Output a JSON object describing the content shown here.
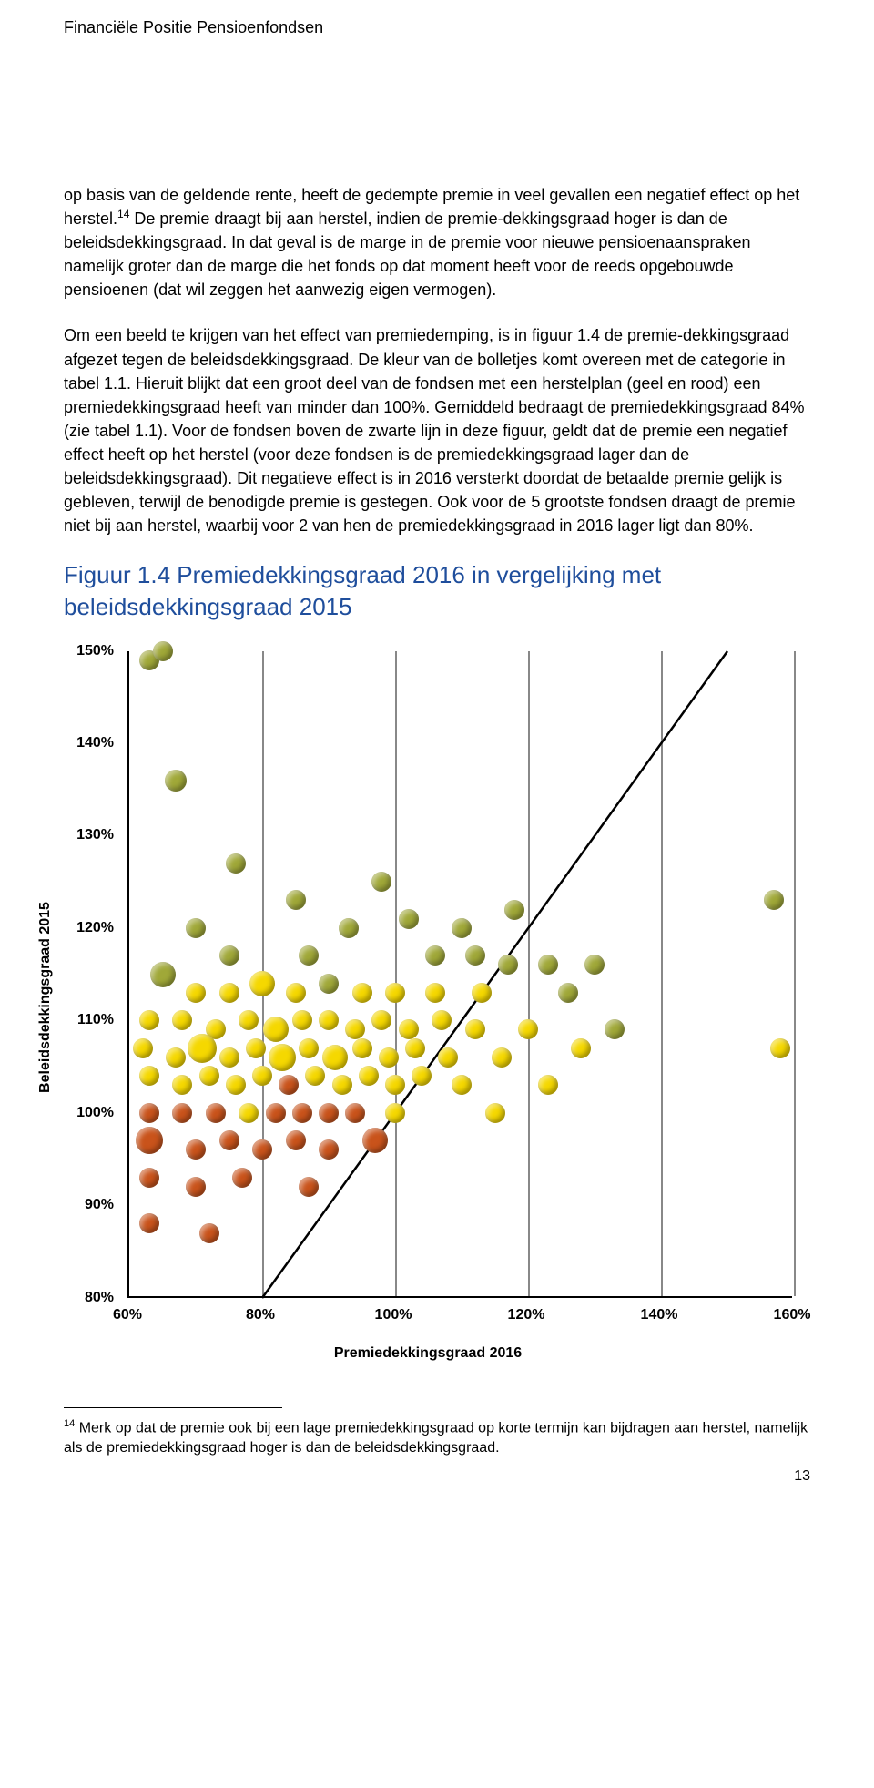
{
  "header": {
    "title": "Financiële Positie Pensioenfondsen"
  },
  "para1": "op basis van de geldende rente, heeft de gedempte premie in veel gevallen een negatief effect op het herstel.",
  "sup1": "14",
  "para1b": " De premie draagt bij aan herstel, indien de premie-dekkingsgraad hoger is dan de beleidsdekkingsgraad. In dat geval is de marge in de premie voor nieuwe pensioenaanspraken namelijk groter dan de marge die het fonds op dat moment heeft voor de reeds opgebouwde pensioenen (dat wil zeggen het aanwezig eigen vermogen).",
  "para2": "Om een beeld te krijgen van het effect van premiedemping, is in figuur 1.4 de premie-dekkingsgraad afgezet tegen de beleidsdekkingsgraad. De kleur van de bolletjes komt overeen met de categorie in tabel 1.1. Hieruit blijkt dat een groot deel van de fondsen met een herstelplan (geel en rood) een premiedekkingsgraad heeft van minder dan 100%. Gemiddeld bedraagt de premiedekkingsgraad 84% (zie tabel 1.1). Voor de fondsen boven de zwarte lijn in deze figuur, geldt dat de premie een negatief effect heeft op het herstel (voor deze fondsen is de premiedekkingsgraad lager dan de beleidsdekkingsgraad). Dit negatieve effect is in 2016 versterkt doordat de betaalde premie gelijk is gebleven, terwijl de benodigde premie is gestegen. Ook voor de 5 grootste fondsen draagt de premie niet bij aan herstel, waarbij voor 2 van hen de premiedekkingsgraad in 2016 lager ligt dan 80%.",
  "figure_title": "Figuur 1.4 Premiedekkingsgraad 2016 in vergelijking met beleidsdekkingsgraad 2015",
  "chart": {
    "type": "scatter",
    "xlabel": "Premiedekkingsgraad 2016",
    "ylabel": "Beleidsdekkingsgraad 2015",
    "xlim": [
      60,
      160
    ],
    "ylim": [
      80,
      150
    ],
    "xticks": [
      60,
      80,
      100,
      120,
      140,
      160
    ],
    "yticks": [
      80,
      90,
      100,
      110,
      120,
      130,
      140,
      150
    ],
    "xtick_labels": [
      "60%",
      "80%",
      "100%",
      "120%",
      "140%",
      "160%"
    ],
    "ytick_labels": [
      "80%",
      "90%",
      "100%",
      "110%",
      "120%",
      "130%",
      "140%",
      "150%"
    ],
    "grid_color": "#888888",
    "axis_color": "#000000",
    "background_color": "#ffffff",
    "label_fontsize": 16,
    "label_fontweight": "bold",
    "diagonal_line": {
      "x1": 80,
      "y1": 80,
      "x2": 150,
      "y2": 150,
      "color": "#000000",
      "width": 2.5
    },
    "colors": {
      "green": "#a0a838",
      "yellow": "#f5d800",
      "red": "#c9531b"
    },
    "marker_radius_default": 11,
    "points": [
      {
        "x": 63,
        "y": 149,
        "c": "green",
        "r": 11
      },
      {
        "x": 65,
        "y": 150,
        "c": "green",
        "r": 11
      },
      {
        "x": 67,
        "y": 136,
        "c": "green",
        "r": 12
      },
      {
        "x": 76,
        "y": 127,
        "c": "green",
        "r": 11
      },
      {
        "x": 98,
        "y": 125,
        "c": "green",
        "r": 11
      },
      {
        "x": 85,
        "y": 123,
        "c": "green",
        "r": 11
      },
      {
        "x": 70,
        "y": 120,
        "c": "green",
        "r": 11
      },
      {
        "x": 93,
        "y": 120,
        "c": "green",
        "r": 11
      },
      {
        "x": 102,
        "y": 121,
        "c": "green",
        "r": 11
      },
      {
        "x": 110,
        "y": 120,
        "c": "green",
        "r": 11
      },
      {
        "x": 118,
        "y": 122,
        "c": "green",
        "r": 11
      },
      {
        "x": 157,
        "y": 123,
        "c": "green",
        "r": 11
      },
      {
        "x": 75,
        "y": 117,
        "c": "green",
        "r": 11
      },
      {
        "x": 87,
        "y": 117,
        "c": "green",
        "r": 11
      },
      {
        "x": 106,
        "y": 117,
        "c": "green",
        "r": 11
      },
      {
        "x": 112,
        "y": 117,
        "c": "green",
        "r": 11
      },
      {
        "x": 117,
        "y": 116,
        "c": "green",
        "r": 11
      },
      {
        "x": 123,
        "y": 116,
        "c": "green",
        "r": 11
      },
      {
        "x": 130,
        "y": 116,
        "c": "green",
        "r": 11
      },
      {
        "x": 65,
        "y": 115,
        "c": "green",
        "r": 14
      },
      {
        "x": 70,
        "y": 113,
        "c": "yellow",
        "r": 11
      },
      {
        "x": 75,
        "y": 113,
        "c": "yellow",
        "r": 11
      },
      {
        "x": 80,
        "y": 114,
        "c": "yellow",
        "r": 14
      },
      {
        "x": 85,
        "y": 113,
        "c": "yellow",
        "r": 11
      },
      {
        "x": 90,
        "y": 114,
        "c": "green",
        "r": 11
      },
      {
        "x": 95,
        "y": 113,
        "c": "yellow",
        "r": 11
      },
      {
        "x": 100,
        "y": 113,
        "c": "yellow",
        "r": 11
      },
      {
        "x": 106,
        "y": 113,
        "c": "yellow",
        "r": 11
      },
      {
        "x": 113,
        "y": 113,
        "c": "yellow",
        "r": 11
      },
      {
        "x": 126,
        "y": 113,
        "c": "green",
        "r": 11
      },
      {
        "x": 63,
        "y": 110,
        "c": "yellow",
        "r": 11
      },
      {
        "x": 68,
        "y": 110,
        "c": "yellow",
        "r": 11
      },
      {
        "x": 73,
        "y": 109,
        "c": "yellow",
        "r": 11
      },
      {
        "x": 78,
        "y": 110,
        "c": "yellow",
        "r": 11
      },
      {
        "x": 82,
        "y": 109,
        "c": "yellow",
        "r": 14
      },
      {
        "x": 86,
        "y": 110,
        "c": "yellow",
        "r": 11
      },
      {
        "x": 90,
        "y": 110,
        "c": "yellow",
        "r": 11
      },
      {
        "x": 94,
        "y": 109,
        "c": "yellow",
        "r": 11
      },
      {
        "x": 98,
        "y": 110,
        "c": "yellow",
        "r": 11
      },
      {
        "x": 102,
        "y": 109,
        "c": "yellow",
        "r": 11
      },
      {
        "x": 107,
        "y": 110,
        "c": "yellow",
        "r": 11
      },
      {
        "x": 112,
        "y": 109,
        "c": "yellow",
        "r": 11
      },
      {
        "x": 120,
        "y": 109,
        "c": "yellow",
        "r": 11
      },
      {
        "x": 133,
        "y": 109,
        "c": "green",
        "r": 11
      },
      {
        "x": 62,
        "y": 107,
        "c": "yellow",
        "r": 11
      },
      {
        "x": 67,
        "y": 106,
        "c": "yellow",
        "r": 11
      },
      {
        "x": 71,
        "y": 107,
        "c": "yellow",
        "r": 16
      },
      {
        "x": 75,
        "y": 106,
        "c": "yellow",
        "r": 11
      },
      {
        "x": 79,
        "y": 107,
        "c": "yellow",
        "r": 11
      },
      {
        "x": 83,
        "y": 106,
        "c": "yellow",
        "r": 15
      },
      {
        "x": 87,
        "y": 107,
        "c": "yellow",
        "r": 11
      },
      {
        "x": 91,
        "y": 106,
        "c": "yellow",
        "r": 14
      },
      {
        "x": 95,
        "y": 107,
        "c": "yellow",
        "r": 11
      },
      {
        "x": 99,
        "y": 106,
        "c": "yellow",
        "r": 11
      },
      {
        "x": 103,
        "y": 107,
        "c": "yellow",
        "r": 11
      },
      {
        "x": 108,
        "y": 106,
        "c": "yellow",
        "r": 11
      },
      {
        "x": 116,
        "y": 106,
        "c": "yellow",
        "r": 11
      },
      {
        "x": 128,
        "y": 107,
        "c": "yellow",
        "r": 11
      },
      {
        "x": 158,
        "y": 107,
        "c": "yellow",
        "r": 11
      },
      {
        "x": 63,
        "y": 104,
        "c": "yellow",
        "r": 11
      },
      {
        "x": 68,
        "y": 103,
        "c": "yellow",
        "r": 11
      },
      {
        "x": 72,
        "y": 104,
        "c": "yellow",
        "r": 11
      },
      {
        "x": 76,
        "y": 103,
        "c": "yellow",
        "r": 11
      },
      {
        "x": 80,
        "y": 104,
        "c": "yellow",
        "r": 11
      },
      {
        "x": 84,
        "y": 103,
        "c": "red",
        "r": 11
      },
      {
        "x": 88,
        "y": 104,
        "c": "yellow",
        "r": 11
      },
      {
        "x": 92,
        "y": 103,
        "c": "yellow",
        "r": 11
      },
      {
        "x": 96,
        "y": 104,
        "c": "yellow",
        "r": 11
      },
      {
        "x": 100,
        "y": 103,
        "c": "yellow",
        "r": 11
      },
      {
        "x": 104,
        "y": 104,
        "c": "yellow",
        "r": 11
      },
      {
        "x": 110,
        "y": 103,
        "c": "yellow",
        "r": 11
      },
      {
        "x": 123,
        "y": 103,
        "c": "yellow",
        "r": 11
      },
      {
        "x": 63,
        "y": 100,
        "c": "red",
        "r": 11
      },
      {
        "x": 68,
        "y": 100,
        "c": "red",
        "r": 11
      },
      {
        "x": 73,
        "y": 100,
        "c": "red",
        "r": 11
      },
      {
        "x": 78,
        "y": 100,
        "c": "yellow",
        "r": 11
      },
      {
        "x": 82,
        "y": 100,
        "c": "red",
        "r": 11
      },
      {
        "x": 86,
        "y": 100,
        "c": "red",
        "r": 11
      },
      {
        "x": 90,
        "y": 100,
        "c": "red",
        "r": 11
      },
      {
        "x": 94,
        "y": 100,
        "c": "red",
        "r": 11
      },
      {
        "x": 100,
        "y": 100,
        "c": "yellow",
        "r": 11
      },
      {
        "x": 115,
        "y": 100,
        "c": "yellow",
        "r": 11
      },
      {
        "x": 63,
        "y": 97,
        "c": "red",
        "r": 15
      },
      {
        "x": 70,
        "y": 96,
        "c": "red",
        "r": 11
      },
      {
        "x": 75,
        "y": 97,
        "c": "red",
        "r": 11
      },
      {
        "x": 80,
        "y": 96,
        "c": "red",
        "r": 11
      },
      {
        "x": 85,
        "y": 97,
        "c": "red",
        "r": 11
      },
      {
        "x": 90,
        "y": 96,
        "c": "red",
        "r": 11
      },
      {
        "x": 97,
        "y": 97,
        "c": "red",
        "r": 14
      },
      {
        "x": 63,
        "y": 93,
        "c": "red",
        "r": 11
      },
      {
        "x": 70,
        "y": 92,
        "c": "red",
        "r": 11
      },
      {
        "x": 77,
        "y": 93,
        "c": "red",
        "r": 11
      },
      {
        "x": 87,
        "y": 92,
        "c": "red",
        "r": 11
      },
      {
        "x": 63,
        "y": 88,
        "c": "red",
        "r": 11
      },
      {
        "x": 72,
        "y": 87,
        "c": "red",
        "r": 11
      }
    ]
  },
  "footnote_sup": "14",
  "footnote": " Merk op dat de premie ook bij een lage premiedekkingsgraad op korte termijn kan bijdragen aan herstel, namelijk als de premiedekkingsgraad hoger is dan de beleidsdekkingsgraad.",
  "page_number": "13"
}
